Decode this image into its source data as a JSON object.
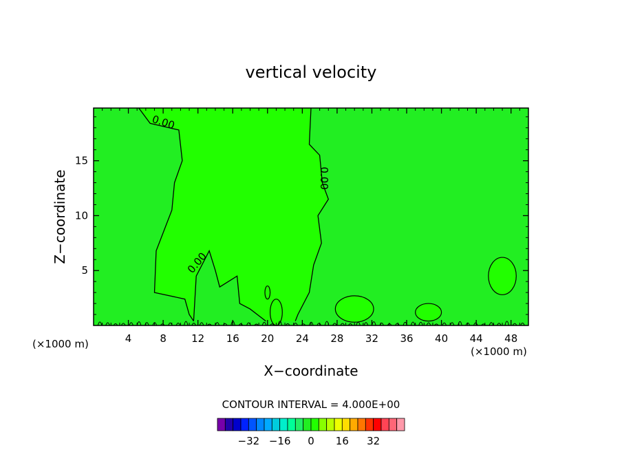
{
  "chart_data": {
    "type": "contour",
    "title": "vertical velocity",
    "xlabel": "X−coordinate",
    "ylabel": "Z−coordinate",
    "x_unit_label_left": "(×1000 m)",
    "x_unit_label_right": "(×1000 m)",
    "xlim": [
      0,
      50
    ],
    "ylim": [
      0,
      19.8
    ],
    "x_ticks": [
      4,
      8,
      12,
      16,
      20,
      24,
      28,
      32,
      36,
      40,
      44,
      48
    ],
    "x_tick_labels": [
      "4",
      "8",
      "12",
      "16",
      "20",
      "24",
      "28",
      "32",
      "36",
      "40",
      "44",
      "48"
    ],
    "y_ticks": [
      5,
      10,
      15
    ],
    "y_tick_labels": [
      "5",
      "10",
      "15"
    ],
    "contour_interval_text": "CONTOUR INTERVAL = 4.000E+00",
    "contour_labels": [
      "0.00",
      "0.00",
      "0.00"
    ],
    "background_color": "#22ee22",
    "updraft_region": {
      "color": "#22ff00",
      "left_boundary": [
        [
          5.2,
          19.8
        ],
        [
          6.5,
          18.4
        ],
        [
          9.8,
          17.8
        ],
        [
          10.2,
          15.0
        ],
        [
          9.3,
          13.0
        ],
        [
          9.0,
          10.5
        ],
        [
          7.2,
          6.8
        ],
        [
          7.0,
          3.0
        ],
        [
          10.5,
          2.4
        ],
        [
          11.0,
          1.0
        ],
        [
          11.5,
          0.4
        ]
      ],
      "right_boundary": [
        [
          25.0,
          19.8
        ],
        [
          24.8,
          16.5
        ],
        [
          26.0,
          15.5
        ],
        [
          26.3,
          13.0
        ],
        [
          27.0,
          11.5
        ],
        [
          25.8,
          10.0
        ],
        [
          26.2,
          7.5
        ],
        [
          25.3,
          5.5
        ],
        [
          24.8,
          3.0
        ],
        [
          23.5,
          1.0
        ],
        [
          23.2,
          0.4
        ]
      ],
      "inner_gap": [
        [
          11.5,
          0.4
        ],
        [
          11.8,
          4.5
        ],
        [
          13.3,
          6.8
        ],
        [
          14.0,
          5.0
        ],
        [
          14.5,
          3.5
        ],
        [
          16.5,
          4.5
        ],
        [
          16.8,
          2.0
        ],
        [
          18.0,
          1.5
        ],
        [
          19.8,
          0.4
        ]
      ]
    },
    "small_cells": [
      {
        "color": "#22ff00",
        "center": [
          21.0,
          1.2
        ],
        "rx": 0.7,
        "ry": 1.2
      },
      {
        "color": "#22ff00",
        "center": [
          20.0,
          3.0
        ],
        "rx": 0.3,
        "ry": 0.6
      },
      {
        "color": "#22ff00",
        "center": [
          30.0,
          1.5
        ],
        "rx": 2.2,
        "ry": 1.2
      },
      {
        "color": "#22ff00",
        "center": [
          47.0,
          4.5
        ],
        "rx": 1.6,
        "ry": 1.7
      },
      {
        "color": "#22ff00",
        "center": [
          38.5,
          1.2
        ],
        "rx": 1.5,
        "ry": 0.8
      }
    ],
    "colorbar": {
      "colors": [
        "#7700aa",
        "#2200aa",
        "#0000cc",
        "#0022ff",
        "#0055ff",
        "#0088ff",
        "#00aaff",
        "#00ccdd",
        "#00eecc",
        "#00ff99",
        "#22ee66",
        "#22ee22",
        "#22ff00",
        "#88ff00",
        "#bbff00",
        "#eeff00",
        "#ffdd00",
        "#ffaa00",
        "#ff7700",
        "#ff3300",
        "#ff0000",
        "#ff4455",
        "#ff6677",
        "#ff99aa"
      ],
      "tick_values": [
        -32,
        -16,
        0,
        16,
        32
      ],
      "tick_labels": [
        "−32",
        "−16",
        "0",
        "16",
        "32"
      ]
    }
  }
}
